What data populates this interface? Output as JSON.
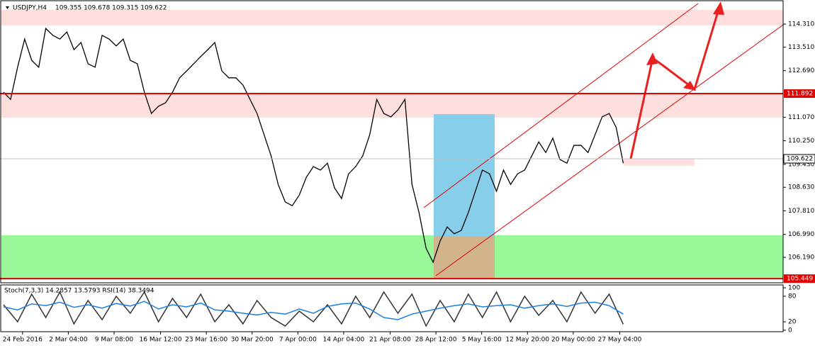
{
  "chart_data": [
    {
      "type": "line",
      "title": "USDJPY,H4",
      "subtitle": "109.355 109.678 109.315 109.622",
      "x": [
        0,
        1,
        2,
        3,
        4,
        5,
        6,
        7,
        8,
        9,
        10,
        11,
        12,
        13,
        14,
        15,
        16,
        17,
        18,
        19,
        20,
        21,
        22,
        23,
        24,
        25,
        26,
        27,
        28,
        29,
        30,
        31,
        32,
        33,
        34,
        35,
        36,
        37,
        38,
        39,
        40,
        41,
        42,
        43,
        44,
        45,
        46,
        47,
        48,
        49,
        50,
        51,
        52,
        53,
        54,
        55,
        56,
        57,
        58,
        59,
        60,
        61,
        62,
        63,
        64,
        65,
        66,
        67,
        68,
        69,
        70,
        71,
        72,
        73,
        74,
        75,
        76,
        77,
        78,
        79,
        80,
        81,
        82,
        83,
        84,
        85,
        86,
        87,
        88
      ],
      "series": [
        {
          "name": "USDJPY",
          "color": "#000000",
          "values": [
            111.94,
            111.69,
            112.81,
            113.79,
            113.05,
            112.81,
            114.16,
            113.92,
            113.79,
            114.04,
            113.42,
            113.67,
            112.93,
            112.81,
            113.92,
            113.79,
            113.55,
            113.79,
            113.05,
            112.93,
            111.94,
            111.2,
            111.45,
            111.57,
            111.94,
            112.44,
            112.68,
            112.93,
            113.18,
            113.42,
            113.67,
            112.68,
            112.44,
            112.44,
            112.19,
            111.69,
            111.2,
            110.46,
            109.72,
            108.73,
            108.12,
            107.99,
            108.36,
            108.98,
            109.35,
            109.23,
            109.47,
            108.61,
            108.24,
            109.1,
            109.35,
            109.72,
            110.46,
            111.69,
            111.2,
            111.08,
            111.32,
            111.69,
            108.73,
            107.75,
            106.51,
            106.02,
            106.76,
            107.25,
            107.01,
            107.13,
            107.75,
            108.49,
            109.23,
            109.1,
            108.49,
            109.23,
            108.73,
            109.1,
            109.23,
            109.72,
            110.21,
            109.84,
            110.34,
            109.6,
            109.47,
            110.09,
            110.09,
            109.84,
            110.46,
            111.08,
            111.2,
            110.71,
            109.47
          ]
        }
      ],
      "xlim": [
        -0.5,
        110.7
      ],
      "xticks": [
        {
          "value": 2.7,
          "label": "24 Feb 2016"
        },
        {
          "value": 9.2,
          "label": "2 Mar 04:00"
        },
        {
          "value": 15.7,
          "label": "9 Mar 08:00"
        },
        {
          "value": 22.3,
          "label": "16 Mar 12:00"
        },
        {
          "value": 28.8,
          "label": "23 Mar 16:00"
        },
        {
          "value": 35.3,
          "label": "30 Mar 20:00"
        },
        {
          "value": 41.8,
          "label": "7 Apr 00:00"
        },
        {
          "value": 48.3,
          "label": "14 Apr 04:00"
        },
        {
          "value": 54.9,
          "label": "21 Apr 08:00"
        },
        {
          "value": 61.4,
          "label": "28 Apr 12:00"
        },
        {
          "value": 67.9,
          "label": "5 May 16:00"
        },
        {
          "value": 74.4,
          "label": "12 May 20:00"
        },
        {
          "value": 80.9,
          "label": "20 May 00:00"
        },
        {
          "value": 87.5,
          "label": "27 May 04:00"
        }
      ],
      "ylim": [
        105.28,
        115.15
      ],
      "yticks": [
        {
          "value": 114.31,
          "label": "114.310"
        },
        {
          "value": 113.51,
          "label": "113.510"
        },
        {
          "value": 112.69,
          "label": "112.690"
        },
        {
          "value": 111.07,
          "label": "111.070"
        },
        {
          "value": 110.25,
          "label": "110.250"
        },
        {
          "value": 109.43,
          "label": "109.430"
        },
        {
          "value": 108.63,
          "label": "108.630"
        },
        {
          "value": 107.81,
          "label": "107.810"
        },
        {
          "value": 106.99,
          "label": "106.990"
        },
        {
          "value": 106.19,
          "label": "106.190"
        }
      ],
      "levels": [
        {
          "value": 111.892,
          "color": "#e00000"
        },
        {
          "value": 105.449,
          "color": "#e00000"
        }
      ],
      "current_price": 109.622
    },
    {
      "type": "line",
      "title": "Stoch(7,3,3) 14.2857 13.5793 RSI(14) 38.3494",
      "x": [
        0,
        2,
        4,
        6,
        8,
        10,
        12,
        14,
        16,
        18,
        20,
        22,
        24,
        26,
        28,
        30,
        32,
        34,
        36,
        38,
        40,
        42,
        44,
        46,
        48,
        50,
        52,
        54,
        56,
        58,
        60,
        62,
        64,
        66,
        68,
        70,
        72,
        74,
        76,
        78,
        80,
        82,
        84,
        86,
        88
      ],
      "series": [
        {
          "name": "Stoch",
          "color": "#333333",
          "values": [
            60,
            20,
            85,
            30,
            90,
            15,
            70,
            25,
            80,
            40,
            90,
            20,
            75,
            30,
            85,
            20,
            60,
            15,
            70,
            30,
            10,
            45,
            20,
            60,
            15,
            80,
            30,
            90,
            40,
            85,
            10,
            70,
            20,
            85,
            30,
            90,
            20,
            80,
            35,
            70,
            20,
            90,
            40,
            85,
            14
          ]
        },
        {
          "name": "RSI",
          "color": "#1e7fe0",
          "values": [
            55,
            48,
            62,
            58,
            66,
            54,
            60,
            52,
            63,
            57,
            68,
            50,
            60,
            55,
            64,
            48,
            45,
            40,
            36,
            42,
            38,
            50,
            40,
            56,
            62,
            64,
            50,
            30,
            25,
            38,
            45,
            52,
            58,
            62,
            55,
            58,
            60,
            52,
            58,
            62,
            56,
            64,
            66,
            58,
            38
          ]
        }
      ],
      "ylim": [
        0,
        100
      ],
      "yticks": [
        100,
        80,
        20,
        0
      ]
    }
  ]
}
